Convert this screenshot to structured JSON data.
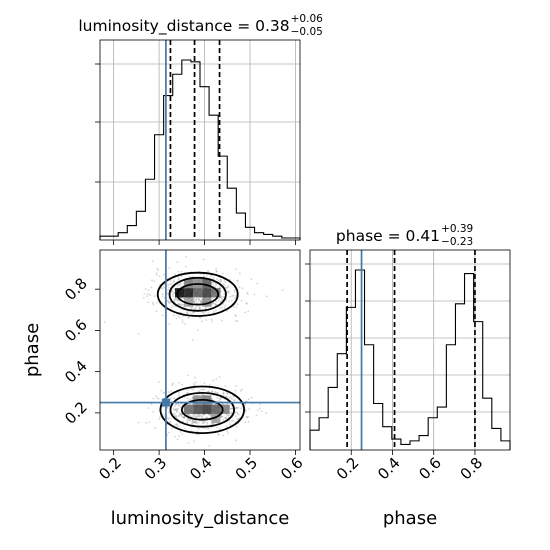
{
  "chart_data": [
    {
      "type": "histogram",
      "panel": "luminosity_distance-marginal",
      "title": "luminosity_distance = 0.38",
      "title_sup": "+0.06",
      "title_sub": "−0.05",
      "xlim": [
        0.17,
        0.61
      ],
      "bins": [
        0.17,
        0.19,
        0.21,
        0.23,
        0.25,
        0.27,
        0.29,
        0.31,
        0.33,
        0.35,
        0.37,
        0.39,
        0.41,
        0.43,
        0.45,
        0.47,
        0.49,
        0.51,
        0.53,
        0.55,
        0.57,
        0.59,
        0.61
      ],
      "counts": [
        0.01,
        0.01,
        0.03,
        0.07,
        0.15,
        0.33,
        0.58,
        0.8,
        0.92,
        1.0,
        0.99,
        0.85,
        0.69,
        0.46,
        0.28,
        0.14,
        0.06,
        0.03,
        0.02,
        0.01,
        0.0,
        0.0
      ],
      "quantiles": [
        0.325,
        0.378,
        0.433
      ],
      "truth": 0.315,
      "grid": true
    },
    {
      "type": "histogram",
      "panel": "phase-marginal",
      "title": "phase = 0.41",
      "title_sup": "+0.39",
      "title_sub": "−0.23",
      "xlim": [
        0.0,
        0.97
      ],
      "bins": [
        0.0,
        0.0441,
        0.0882,
        0.1323,
        0.1764,
        0.2205,
        0.2645,
        0.3086,
        0.3527,
        0.3968,
        0.4409,
        0.485,
        0.5291,
        0.5732,
        0.6173,
        0.6614,
        0.7055,
        0.7495,
        0.7936,
        0.8377,
        0.8818,
        0.9259,
        0.97
      ],
      "counts": [
        0.1,
        0.17,
        0.34,
        0.53,
        0.79,
        1.0,
        0.58,
        0.25,
        0.12,
        0.05,
        0.02,
        0.04,
        0.07,
        0.17,
        0.23,
        0.58,
        0.81,
        0.98,
        0.71,
        0.28,
        0.11,
        0.04
      ],
      "quantiles": [
        0.18,
        0.41,
        0.8
      ],
      "truth": 0.25,
      "xticks": [
        0.2,
        0.4,
        0.6,
        0.8
      ],
      "xticklabels": [
        "0.2",
        "0.4",
        "0.6",
        "0.8"
      ],
      "xlabel": "phase",
      "grid": true
    },
    {
      "type": "heatmap",
      "panel": "2d-luminosity_distance-vs-phase",
      "xlim": [
        0.17,
        0.61
      ],
      "ylim": [
        0.02,
        0.99
      ],
      "xticks": [
        0.2,
        0.3,
        0.4,
        0.5,
        0.6
      ],
      "xticklabels": [
        "0.2",
        "0.3",
        "0.4",
        "0.5",
        "0.6"
      ],
      "yticks": [
        0.2,
        0.4,
        0.6,
        0.8
      ],
      "yticklabels": [
        "0.2",
        "0.4",
        "0.6",
        "0.8"
      ],
      "xlabel": "luminosity_distance",
      "ylabel": "phase",
      "modes": [
        {
          "cx": 0.385,
          "cy": 0.775,
          "contours": [
            [
              0.045,
              0.05
            ],
            [
              0.062,
              0.08
            ],
            [
              0.088,
              0.105
            ]
          ]
        },
        {
          "cx": 0.395,
          "cy": 0.215,
          "contours": [
            [
              0.045,
              0.048
            ],
            [
              0.07,
              0.082
            ],
            [
              0.092,
              0.113
            ]
          ]
        }
      ],
      "density_cells": [
        {
          "x": 0.335,
          "y": 0.76,
          "w": 0.02,
          "h": 0.045,
          "shade": "#000000"
        },
        {
          "x": 0.355,
          "y": 0.76,
          "w": 0.02,
          "h": 0.045,
          "shade": "#111111"
        },
        {
          "x": 0.375,
          "y": 0.76,
          "w": 0.02,
          "h": 0.045,
          "shade": "#555555"
        },
        {
          "x": 0.395,
          "y": 0.76,
          "w": 0.02,
          "h": 0.045,
          "shade": "#333333"
        },
        {
          "x": 0.415,
          "y": 0.76,
          "w": 0.02,
          "h": 0.045,
          "shade": "#666666"
        },
        {
          "x": 0.355,
          "y": 0.805,
          "w": 0.02,
          "h": 0.045,
          "shade": "#777777"
        },
        {
          "x": 0.375,
          "y": 0.805,
          "w": 0.02,
          "h": 0.045,
          "shade": "#888888"
        },
        {
          "x": 0.395,
          "y": 0.805,
          "w": 0.02,
          "h": 0.045,
          "shade": "#555555"
        },
        {
          "x": 0.355,
          "y": 0.715,
          "w": 0.02,
          "h": 0.045,
          "shade": "#999999"
        },
        {
          "x": 0.395,
          "y": 0.715,
          "w": 0.02,
          "h": 0.045,
          "shade": "#888888"
        },
        {
          "x": 0.355,
          "y": 0.195,
          "w": 0.02,
          "h": 0.045,
          "shade": "#666666"
        },
        {
          "x": 0.375,
          "y": 0.195,
          "w": 0.02,
          "h": 0.045,
          "shade": "#444444"
        },
        {
          "x": 0.395,
          "y": 0.195,
          "w": 0.02,
          "h": 0.045,
          "shade": "#333333"
        },
        {
          "x": 0.415,
          "y": 0.195,
          "w": 0.02,
          "h": 0.045,
          "shade": "#555555"
        },
        {
          "x": 0.435,
          "y": 0.195,
          "w": 0.02,
          "h": 0.045,
          "shade": "#777777"
        },
        {
          "x": 0.375,
          "y": 0.24,
          "w": 0.02,
          "h": 0.045,
          "shade": "#888888"
        },
        {
          "x": 0.395,
          "y": 0.24,
          "w": 0.02,
          "h": 0.045,
          "shade": "#777777"
        },
        {
          "x": 0.415,
          "y": 0.15,
          "w": 0.02,
          "h": 0.045,
          "shade": "#999999"
        }
      ],
      "truth": {
        "x": 0.315,
        "y": 0.25
      },
      "grid": false
    }
  ],
  "colors": {
    "truth": "#4477aa",
    "lines": "#000000",
    "scatter": "#888888",
    "grid": "#b0b0b0"
  }
}
